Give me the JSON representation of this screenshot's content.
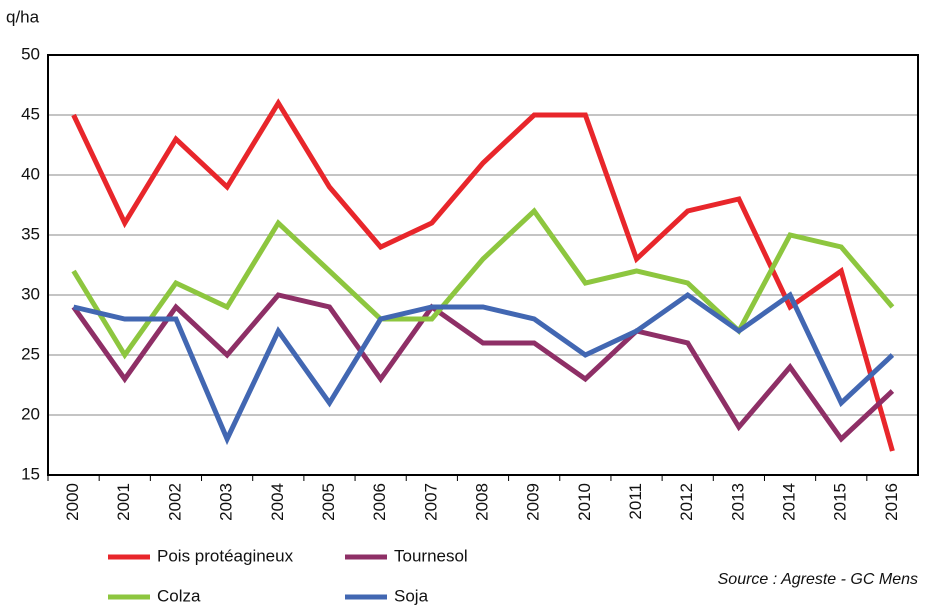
{
  "chart_data": {
    "type": "line",
    "y_label": "q/ha",
    "source": "Source : Agreste - GC Mens",
    "categories": [
      "2000",
      "2001",
      "2002",
      "2003",
      "2004",
      "2005",
      "2006",
      "2007",
      "2008",
      "2009",
      "2010",
      "2011",
      "2012",
      "2013",
      "2014",
      "2015",
      "2016"
    ],
    "series": [
      {
        "name": "Pois protéagineux",
        "color": "#e8262b",
        "values": [
          45,
          36,
          43,
          39,
          46,
          39,
          34,
          36,
          41,
          45,
          45,
          33,
          37,
          38,
          29,
          32,
          17
        ]
      },
      {
        "name": "Tournesol",
        "color": "#8e2f66",
        "values": [
          29,
          23,
          29,
          25,
          30,
          29,
          23,
          29,
          26,
          26,
          23,
          27,
          26,
          19,
          24,
          18,
          22
        ]
      },
      {
        "name": "Colza",
        "color": "#8dc63f",
        "values": [
          32,
          25,
          31,
          29,
          36,
          32,
          28,
          28,
          33,
          37,
          31,
          32,
          31,
          27,
          35,
          34,
          29
        ]
      },
      {
        "name": "Soja",
        "color": "#4267b2",
        "values": [
          29,
          28,
          28,
          18,
          27,
          21,
          28,
          29,
          29,
          28,
          25,
          27,
          30,
          27,
          30,
          21,
          25
        ]
      }
    ],
    "ylim": [
      15,
      50
    ],
    "yticks": [
      15,
      20,
      25,
      30,
      35,
      40,
      45,
      50
    ],
    "grid": true
  }
}
